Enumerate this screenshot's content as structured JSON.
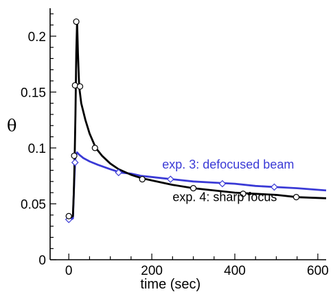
{
  "chart_data": {
    "type": "line",
    "title": "",
    "xlabel": "time (sec)",
    "ylabel": "θ",
    "xlim": [
      -45,
      620
    ],
    "ylim": [
      0,
      0.225
    ],
    "x_ticks": [
      0,
      200,
      400,
      600
    ],
    "x_tick_labels": [
      "0",
      "200",
      "400",
      "600"
    ],
    "y_ticks": [
      0,
      0.05,
      0.1,
      0.15,
      0.2
    ],
    "y_tick_labels": [
      "0",
      "0.05",
      "0.1",
      "0.15",
      "0.2"
    ],
    "grid": false,
    "legend": "none",
    "series": [
      {
        "name": "exp. 3: defocused beam",
        "color": "#3a3ad6",
        "marker": "diamond",
        "x": [
          0,
          5,
          10,
          13,
          16,
          20,
          25,
          35,
          50,
          70,
          100,
          125,
          150,
          175,
          200,
          250,
          300,
          350,
          400,
          450,
          500,
          550,
          620
        ],
        "y": [
          0.036,
          0.036,
          0.037,
          0.07,
          0.093,
          0.096,
          0.094,
          0.091,
          0.088,
          0.085,
          0.081,
          0.078,
          0.077,
          0.075,
          0.074,
          0.072,
          0.07,
          0.069,
          0.068,
          0.066,
          0.065,
          0.064,
          0.062
        ],
        "markers": [
          [
            0,
            0.036
          ],
          [
            15,
            0.087
          ],
          [
            120,
            0.078
          ],
          [
            245,
            0.072
          ],
          [
            370,
            0.068
          ],
          [
            495,
            0.065
          ]
        ]
      },
      {
        "name": "exp. 4: sharp focus",
        "color": "#000000",
        "marker": "circle",
        "x": [
          0,
          5,
          10,
          12,
          14,
          16,
          18,
          20,
          22,
          25,
          30,
          40,
          50,
          65,
          80,
          100,
          120,
          150,
          175,
          200,
          250,
          300,
          350,
          400,
          450,
          500,
          550,
          620
        ],
        "y": [
          0.038,
          0.038,
          0.039,
          0.06,
          0.09,
          0.13,
          0.185,
          0.213,
          0.185,
          0.155,
          0.14,
          0.125,
          0.113,
          0.1,
          0.093,
          0.086,
          0.081,
          0.076,
          0.073,
          0.071,
          0.067,
          0.064,
          0.062,
          0.06,
          0.059,
          0.058,
          0.056,
          0.055
        ],
        "markers": [
          [
            0,
            0.039
          ],
          [
            13,
            0.093
          ],
          [
            15,
            0.156
          ],
          [
            18,
            0.213
          ],
          [
            27,
            0.155
          ],
          [
            63,
            0.1
          ],
          [
            177,
            0.072
          ],
          [
            300,
            0.064
          ],
          [
            420,
            0.059
          ],
          [
            548,
            0.056
          ]
        ]
      }
    ],
    "annotations": [
      {
        "text": "exp. 3: defocused beam",
        "color": "#3a3ad6",
        "x": 225,
        "y": 0.0815
      },
      {
        "text": "exp. 4: sharp focus",
        "color": "#000000",
        "x": 250,
        "y": 0.0525
      }
    ]
  }
}
